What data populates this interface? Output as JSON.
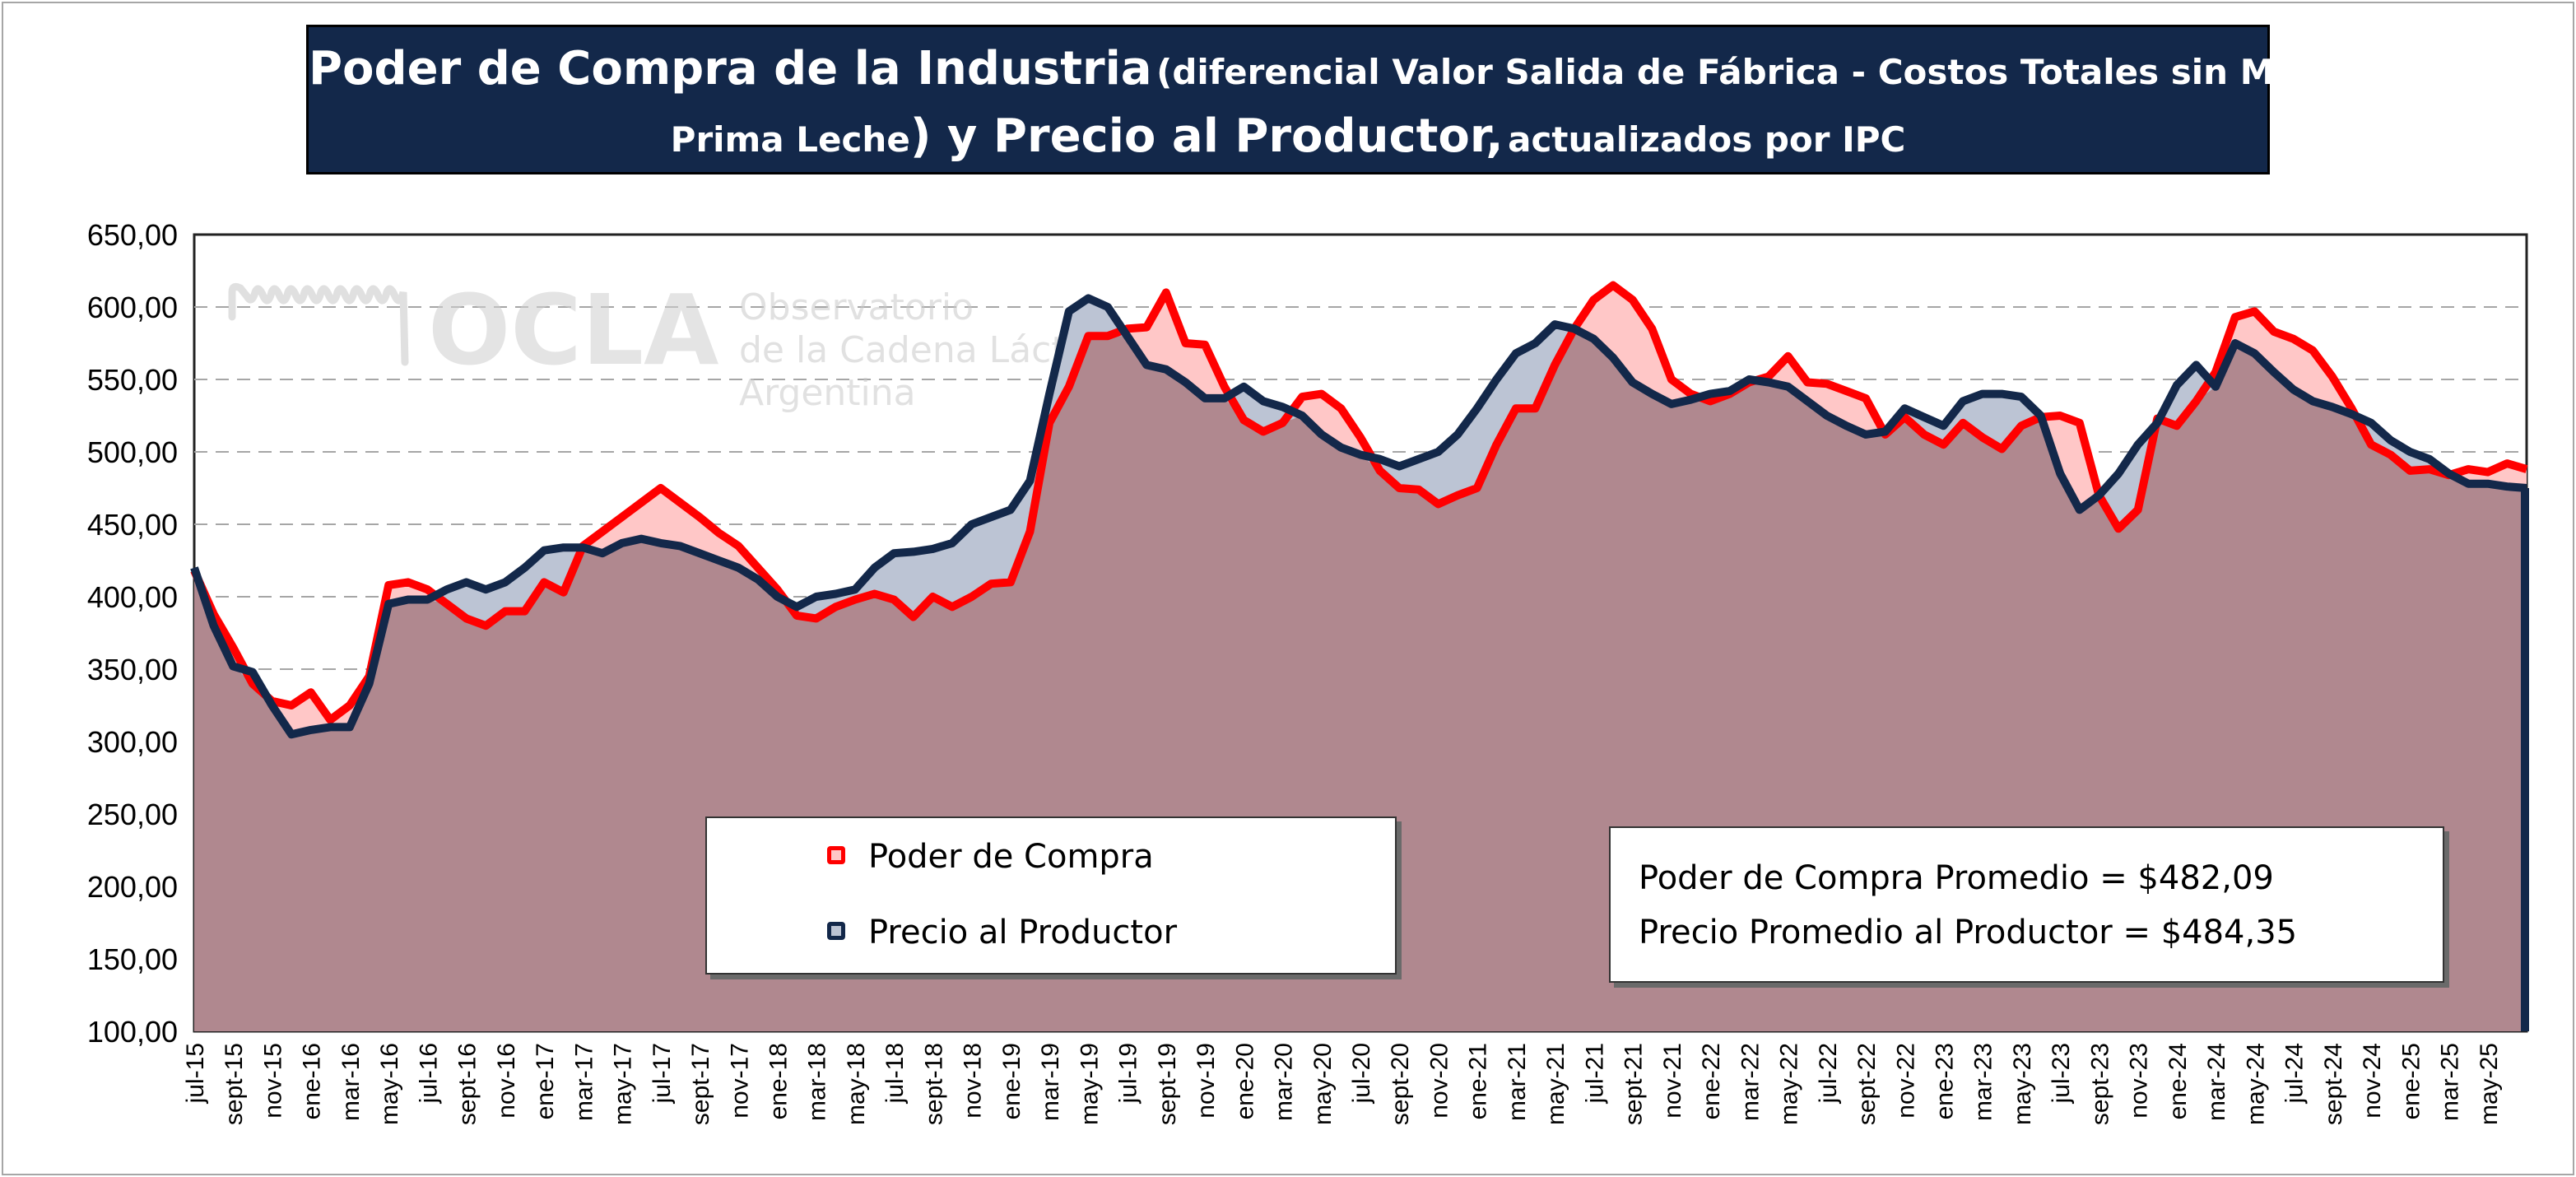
{
  "title": {
    "part1": "Poder de Compra de la Industria",
    "part2": "(diferencial Valor Salida de Fábrica - Costos Totales sin Materia",
    "part3": "Prima Leche",
    "part4": ") y Precio al Productor,",
    "part5": "actualizados por IPC"
  },
  "watermark": {
    "logo_text": "OCLA",
    "line1": "Observatorio",
    "line2": "de la Cadena Láctea",
    "line3": "Argentina"
  },
  "legend": {
    "items": [
      {
        "label": "Poder de Compra",
        "color": "#ff0000"
      },
      {
        "label": "Precio al Productor",
        "color": "#13284a"
      }
    ]
  },
  "stats": {
    "line1": "Poder de Compra Promedio = $482,09",
    "line2": "Precio Promedio al Productor = $484,35"
  },
  "colors": {
    "poder_line": "#ff0000",
    "poder_fill": "#ffc7c7",
    "precio_line": "#13284a",
    "precio_fill": "#bcc4d4",
    "overlap_fill": "#b0888f",
    "title_bg": "#13284a",
    "grid": "#a6a6a6"
  },
  "chart_data": {
    "type": "area",
    "title": "",
    "xlabel": "",
    "ylabel": "",
    "ylim": [
      100,
      650
    ],
    "yticks": [
      "100,00",
      "150,00",
      "200,00",
      "250,00",
      "300,00",
      "350,00",
      "400,00",
      "450,00",
      "500,00",
      "550,00",
      "600,00",
      "650,00"
    ],
    "xtick_labels": [
      "jul-15",
      "sept-15",
      "nov-15",
      "ene-16",
      "mar-16",
      "may-16",
      "jul-16",
      "sept-16",
      "nov-16",
      "ene-17",
      "mar-17",
      "may-17",
      "jul-17",
      "sept-17",
      "nov-17",
      "ene-18",
      "mar-18",
      "may-18",
      "jul-18",
      "sept-18",
      "nov-18",
      "ene-19",
      "mar-19",
      "may-19",
      "jul-19",
      "sept-19",
      "nov-19",
      "ene-20",
      "mar-20",
      "may-20",
      "jul-20",
      "sept-20",
      "nov-20",
      "ene-21",
      "mar-21",
      "may-21",
      "jul-21",
      "sept-21",
      "nov-21",
      "ene-22",
      "mar-22",
      "may-22",
      "jul-22",
      "sept-22",
      "nov-22",
      "ene-23",
      "mar-23",
      "may-23",
      "jul-23",
      "sept-23",
      "nov-23",
      "ene-24",
      "mar-24",
      "may-24",
      "jul-24",
      "sept-24",
      "nov-24",
      "ene-25",
      "mar-25",
      "may-25"
    ],
    "grid": true,
    "legend_position": "bottom-center",
    "series": [
      {
        "name": "Poder de Compra",
        "values": [
          418,
          388,
          365,
          340,
          328,
          325,
          334,
          315,
          325,
          345,
          408,
          410,
          405,
          395,
          385,
          380,
          390,
          390,
          410,
          403,
          435,
          445,
          455,
          465,
          475,
          465,
          455,
          444,
          435,
          420,
          405,
          387,
          385,
          393,
          398,
          402,
          398,
          386,
          400,
          393,
          400,
          409,
          410,
          445,
          520,
          545,
          580,
          580,
          585,
          586,
          610,
          575,
          574,
          545,
          522,
          514,
          520,
          538,
          540,
          530,
          510,
          487,
          475,
          474,
          464,
          470,
          475,
          505,
          530,
          530,
          560,
          585,
          605,
          615,
          605,
          585,
          550,
          540,
          535,
          540,
          548,
          552,
          566,
          548,
          547,
          542,
          537,
          512,
          524,
          512,
          505,
          520,
          510,
          502,
          518,
          524,
          525,
          520,
          470,
          447,
          460,
          523,
          518,
          535,
          555,
          593,
          597,
          583,
          578,
          570,
          552,
          530,
          505,
          498,
          487,
          488,
          484,
          488,
          486,
          492,
          488
        ]
      },
      {
        "name": "Precio al Productor",
        "values": [
          420,
          380,
          352,
          348,
          325,
          305,
          308,
          310,
          310,
          340,
          395,
          398,
          398,
          405,
          410,
          405,
          410,
          420,
          432,
          434,
          434,
          430,
          437,
          440,
          437,
          435,
          430,
          425,
          420,
          412,
          400,
          393,
          400,
          402,
          405,
          420,
          430,
          431,
          433,
          437,
          450,
          455,
          460,
          480,
          540,
          597,
          606,
          600,
          580,
          560,
          557,
          548,
          537,
          537,
          545,
          535,
          531,
          525,
          512,
          503,
          498,
          495,
          490,
          495,
          500,
          512,
          530,
          550,
          568,
          575,
          588,
          585,
          578,
          565,
          548,
          540,
          533,
          536,
          540,
          542,
          550,
          548,
          545,
          535,
          525,
          518,
          512,
          514,
          530,
          524,
          518,
          535,
          540,
          540,
          538,
          525,
          485,
          460,
          470,
          485,
          505,
          520,
          546,
          560,
          545,
          575,
          568,
          555,
          543,
          535,
          531,
          526,
          520,
          508,
          500,
          495,
          485,
          478,
          478,
          476,
          475
        ]
      }
    ]
  }
}
